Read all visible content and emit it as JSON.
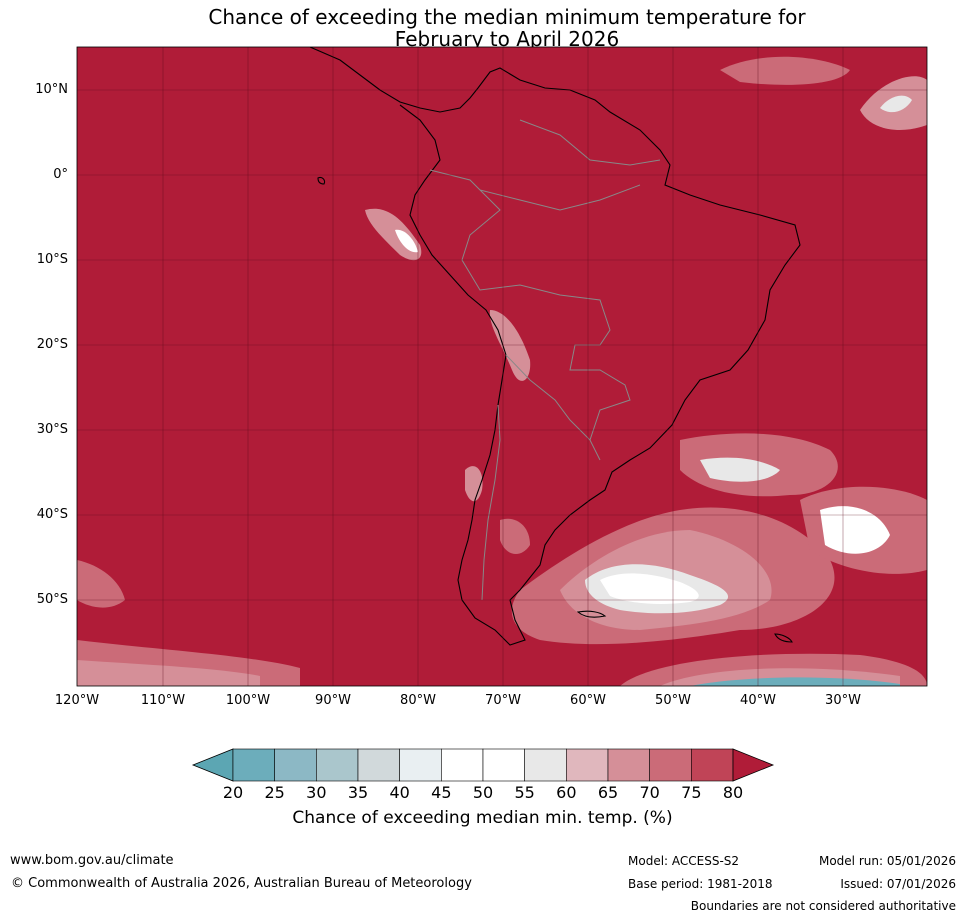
{
  "title_line1": "Chance of exceeding the median minimum temperature for",
  "title_line2": "February to April 2026",
  "lat_labels": [
    "10°N",
    "0°",
    "10°S",
    "20°S",
    "30°S",
    "40°S",
    "50°S"
  ],
  "lon_labels": [
    "120°W",
    "110°W",
    "100°W",
    "90°W",
    "80°W",
    "70°W",
    "60°W",
    "50°W",
    "40°W",
    "30°W"
  ],
  "colorbar": {
    "ticks": [
      "20",
      "25",
      "30",
      "35",
      "40",
      "45",
      "50",
      "55",
      "60",
      "65",
      "70",
      "75",
      "80"
    ],
    "colors": [
      "#5ca6b3",
      "#6cadbb",
      "#8cb8c5",
      "#aac6cc",
      "#d1d9db",
      "#e9eff2",
      "#ffffff",
      "#ffffff",
      "#e8e8e8",
      "#e0b7bd",
      "#d58f98",
      "#cb6b78",
      "#c04457",
      "#b01c38"
    ],
    "label": "Chance of exceeding median min. temp. (%)"
  },
  "footer": {
    "website": "www.bom.gov.au/climate",
    "copyright": "© Commonwealth of Australia 2026, Australian Bureau of Meteorology",
    "model": "Model: ACCESS-S2",
    "base_period": "Base period: 1981-2018",
    "model_run": "Model run: 05/01/2026",
    "issued": "Issued: 07/01/2026",
    "disclaimer": "Boundaries are not considered authoritative"
  }
}
